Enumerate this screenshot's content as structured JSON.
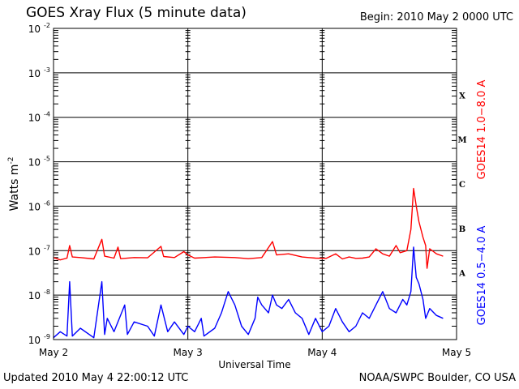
{
  "header": {
    "title": "GOES Xray Flux (5 minute data)",
    "begin": "Begin:  2010 May 2 0000 UTC"
  },
  "footer": {
    "updated": "Updated 2010 May  4 22:00:12 UTC",
    "source": "NOAA/SWPC Boulder, CO USA"
  },
  "chart_data": {
    "type": "line",
    "title": "GOES Xray Flux (5 minute data)",
    "xlabel": "Universal Time",
    "ylabel": "Watts m",
    "ylabel_superscript": "-2",
    "y_scale": "log",
    "ylim": [
      1e-09,
      0.01
    ],
    "xlim_days": [
      0,
      3
    ],
    "x_tick_labels": [
      "May 2",
      "May 3",
      "May 4",
      "May 5"
    ],
    "y_tick_labels": [
      {
        "base": "10",
        "exp": "-9"
      },
      {
        "base": "10",
        "exp": "-8"
      },
      {
        "base": "10",
        "exp": "-7"
      },
      {
        "base": "10",
        "exp": "-6"
      },
      {
        "base": "10",
        "exp": "-5"
      },
      {
        "base": "10",
        "exp": "-4"
      },
      {
        "base": "10",
        "exp": "-3"
      },
      {
        "base": "10",
        "exp": "-2"
      }
    ],
    "flare_classes": [
      {
        "label": "A",
        "at": 1e-08
      },
      {
        "label": "B",
        "at": 1e-07
      },
      {
        "label": "C",
        "at": 1e-06
      },
      {
        "label": "M",
        "at": 1e-05
      },
      {
        "label": "X",
        "at": 0.0001
      }
    ],
    "grid": "horizontal at each decade; vertical at each day",
    "series": [
      {
        "name": "GOES14 1.0−8.0 A",
        "color": "#ff0000",
        "points": [
          [
            0.0,
            7e-08
          ],
          [
            0.05,
            6.2e-08
          ],
          [
            0.1,
            6.8e-08
          ],
          [
            0.12,
            1.3e-07
          ],
          [
            0.14,
            7.2e-08
          ],
          [
            0.2,
            7e-08
          ],
          [
            0.3,
            6.5e-08
          ],
          [
            0.36,
            1.8e-07
          ],
          [
            0.38,
            7.5e-08
          ],
          [
            0.45,
            6.8e-08
          ],
          [
            0.48,
            1.2e-07
          ],
          [
            0.5,
            6.6e-08
          ],
          [
            0.6,
            7e-08
          ],
          [
            0.7,
            6.9e-08
          ],
          [
            0.8,
            1.25e-07
          ],
          [
            0.82,
            7.4e-08
          ],
          [
            0.9,
            7e-08
          ],
          [
            0.97,
            9.5e-08
          ],
          [
            1.0,
            8e-08
          ],
          [
            1.05,
            6.8e-08
          ],
          [
            1.2,
            7.2e-08
          ],
          [
            1.35,
            7e-08
          ],
          [
            1.45,
            6.6e-08
          ],
          [
            1.55,
            7e-08
          ],
          [
            1.63,
            1.6e-07
          ],
          [
            1.66,
            8e-08
          ],
          [
            1.75,
            8.5e-08
          ],
          [
            1.85,
            7.2e-08
          ],
          [
            1.95,
            6.8e-08
          ],
          [
            2.03,
            6.7e-08
          ],
          [
            2.1,
            8.5e-08
          ],
          [
            2.15,
            6.5e-08
          ],
          [
            2.2,
            7.2e-08
          ],
          [
            2.25,
            6.7e-08
          ],
          [
            2.3,
            6.8e-08
          ],
          [
            2.35,
            7.2e-08
          ],
          [
            2.4,
            1.1e-07
          ],
          [
            2.45,
            8.5e-08
          ],
          [
            2.5,
            7.5e-08
          ],
          [
            2.55,
            1.3e-07
          ],
          [
            2.58,
            9e-08
          ],
          [
            2.63,
            1e-07
          ],
          [
            2.66,
            3e-07
          ],
          [
            2.68,
            2.5e-06
          ],
          [
            2.7,
            1e-06
          ],
          [
            2.72,
            4.5e-07
          ],
          [
            2.75,
            2e-07
          ],
          [
            2.77,
            1.3e-07
          ],
          [
            2.78,
            4e-08
          ],
          [
            2.8,
            1.1e-07
          ],
          [
            2.85,
            8.5e-08
          ],
          [
            2.9,
            7.5e-08
          ]
        ]
      },
      {
        "name": "GOES14 0.5−4.0 A",
        "color": "#0000ff",
        "points": [
          [
            0.0,
            1.1e-09
          ],
          [
            0.05,
            1.5e-09
          ],
          [
            0.1,
            1.2e-09
          ],
          [
            0.12,
            2e-08
          ],
          [
            0.14,
            1.2e-09
          ],
          [
            0.2,
            1.8e-09
          ],
          [
            0.3,
            1.1e-09
          ],
          [
            0.36,
            2e-08
          ],
          [
            0.38,
            1.3e-09
          ],
          [
            0.4,
            3e-09
          ],
          [
            0.45,
            1.5e-09
          ],
          [
            0.53,
            6e-09
          ],
          [
            0.55,
            1.3e-09
          ],
          [
            0.6,
            2.5e-09
          ],
          [
            0.7,
            2e-09
          ],
          [
            0.75,
            1.2e-09
          ],
          [
            0.8,
            6e-09
          ],
          [
            0.85,
            1.5e-09
          ],
          [
            0.9,
            2.5e-09
          ],
          [
            0.97,
            1.3e-09
          ],
          [
            1.0,
            2e-09
          ],
          [
            1.05,
            1.5e-09
          ],
          [
            1.1,
            3e-09
          ],
          [
            1.12,
            1.2e-09
          ],
          [
            1.2,
            1.8e-09
          ],
          [
            1.25,
            4e-09
          ],
          [
            1.3,
            1.2e-08
          ],
          [
            1.35,
            6e-09
          ],
          [
            1.4,
            2e-09
          ],
          [
            1.45,
            1.3e-09
          ],
          [
            1.5,
            3e-09
          ],
          [
            1.52,
            9e-09
          ],
          [
            1.55,
            6e-09
          ],
          [
            1.6,
            4e-09
          ],
          [
            1.63,
            1e-08
          ],
          [
            1.66,
            6e-09
          ],
          [
            1.7,
            5e-09
          ],
          [
            1.75,
            8e-09
          ],
          [
            1.8,
            4e-09
          ],
          [
            1.85,
            3e-09
          ],
          [
            1.9,
            1.3e-09
          ],
          [
            1.95,
            3e-09
          ],
          [
            2.0,
            1.5e-09
          ],
          [
            2.05,
            2e-09
          ],
          [
            2.1,
            5e-09
          ],
          [
            2.15,
            2.5e-09
          ],
          [
            2.2,
            1.5e-09
          ],
          [
            2.25,
            2e-09
          ],
          [
            2.3,
            4e-09
          ],
          [
            2.35,
            3e-09
          ],
          [
            2.4,
            6e-09
          ],
          [
            2.45,
            1.2e-08
          ],
          [
            2.5,
            5e-09
          ],
          [
            2.55,
            4e-09
          ],
          [
            2.6,
            8e-09
          ],
          [
            2.63,
            6e-09
          ],
          [
            2.66,
            1.2e-08
          ],
          [
            2.68,
            1.2e-07
          ],
          [
            2.7,
            2.5e-08
          ],
          [
            2.72,
            1.8e-08
          ],
          [
            2.75,
            8e-09
          ],
          [
            2.77,
            3e-09
          ],
          [
            2.8,
            5e-09
          ],
          [
            2.85,
            3.5e-09
          ],
          [
            2.9,
            3e-09
          ]
        ]
      }
    ]
  }
}
